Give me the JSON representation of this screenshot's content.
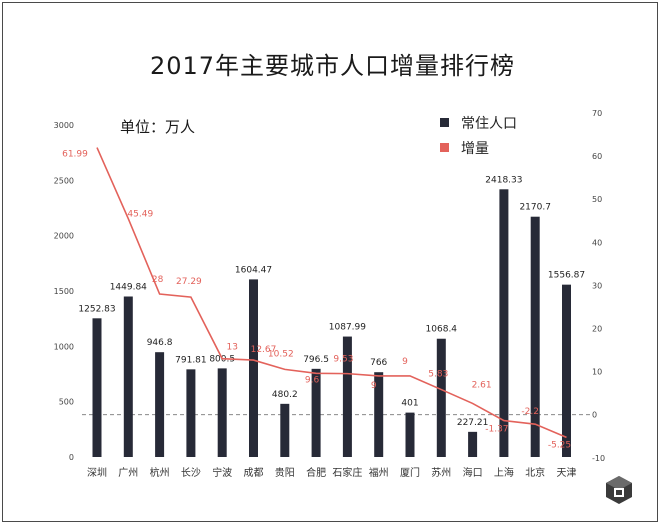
{
  "colors": {
    "bar": "#272a37",
    "line": "#e3625b",
    "axis": "#555555",
    "zero_line": "#777777"
  },
  "icons": {
    "watermark": "cube-logo-icon"
  },
  "chart_data": {
    "type": "bar",
    "title": "2017年主要城市人口增量排行榜",
    "unit_label": "单位：万人",
    "categories": [
      "深圳",
      "广州",
      "杭州",
      "长沙",
      "宁波",
      "成都",
      "贵阳",
      "合肥",
      "石家庄",
      "福州",
      "厦门",
      "苏州",
      "海口",
      "上海",
      "北京",
      "天津"
    ],
    "series": [
      {
        "name": "常住人口",
        "type": "bar",
        "axis": "left",
        "values": [
          1252.83,
          1449.84,
          946.8,
          791.81,
          800.5,
          1604.47,
          480.2,
          796.5,
          1087.99,
          766,
          401,
          1068.4,
          227.21,
          2418.33,
          2170.7,
          1556.87
        ],
        "labels": [
          "1252.83",
          "1449.84",
          "946.8",
          "791.81",
          "800.5",
          "1604.47",
          "480.2",
          "796.5",
          "1087.99",
          "766",
          "401",
          "1068.4",
          "227.21",
          "2418.33",
          "2170.7",
          "1556.87"
        ]
      },
      {
        "name": "增量",
        "type": "line",
        "axis": "right",
        "values": [
          61.99,
          45.49,
          28,
          27.29,
          13,
          12.67,
          10.52,
          9.6,
          9.53,
          9,
          9,
          5.83,
          2.61,
          -1.37,
          -2.2,
          -5.25
        ],
        "labels": [
          "61.99",
          "45.49",
          "28",
          "27.29",
          "13",
          "12.67",
          "10.52",
          "9.6",
          "9.53",
          "9",
          "9",
          "5.83",
          "2.61",
          "-1.37",
          "-2.2",
          "-5.25"
        ]
      }
    ],
    "y_left": {
      "ylim": [
        0,
        3000
      ],
      "ticks": [
        "0",
        "500",
        "1000",
        "1500",
        "2000",
        "2500",
        "3000"
      ]
    },
    "y_right": {
      "ylim": [
        -10,
        70
      ],
      "ticks": [
        "-10",
        "0",
        "10",
        "20",
        "30",
        "40",
        "50",
        "60",
        "70"
      ]
    },
    "legend_position": "top-right",
    "grid": false
  }
}
